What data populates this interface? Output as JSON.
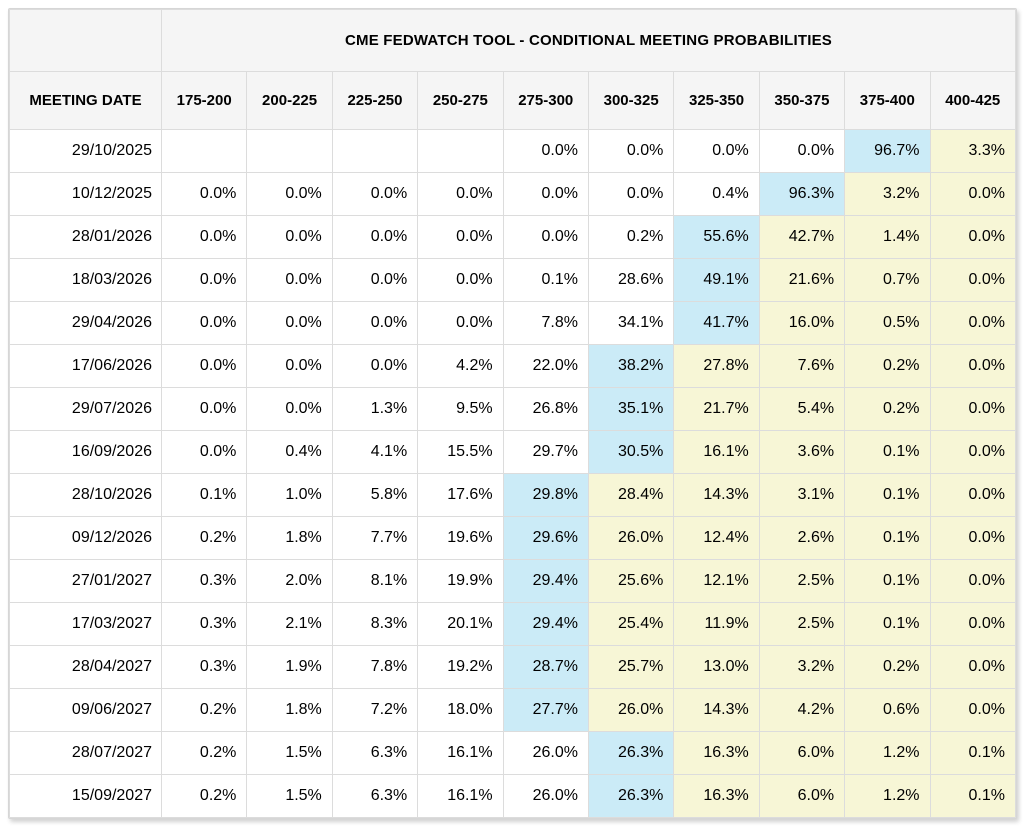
{
  "header": {
    "title": "CME FEDWATCH TOOL - CONDITIONAL MEETING PROBABILITIES",
    "row_label": "MEETING DATE",
    "bins": [
      "175-200",
      "200-225",
      "225-250",
      "250-275",
      "275-300",
      "300-325",
      "325-350",
      "350-375",
      "375-400",
      "400-425"
    ]
  },
  "rows": [
    {
      "date": "29/10/2025",
      "values": [
        "",
        "",
        "",
        "",
        "0.0%",
        "0.0%",
        "0.0%",
        "0.0%",
        "96.7%",
        "3.3%"
      ],
      "pivot": 8
    },
    {
      "date": "10/12/2025",
      "values": [
        "0.0%",
        "0.0%",
        "0.0%",
        "0.0%",
        "0.0%",
        "0.0%",
        "0.4%",
        "96.3%",
        "3.2%",
        "0.0%"
      ],
      "pivot": 7
    },
    {
      "date": "28/01/2026",
      "values": [
        "0.0%",
        "0.0%",
        "0.0%",
        "0.0%",
        "0.0%",
        "0.2%",
        "55.6%",
        "42.7%",
        "1.4%",
        "0.0%"
      ],
      "pivot": 6
    },
    {
      "date": "18/03/2026",
      "values": [
        "0.0%",
        "0.0%",
        "0.0%",
        "0.0%",
        "0.1%",
        "28.6%",
        "49.1%",
        "21.6%",
        "0.7%",
        "0.0%"
      ],
      "pivot": 6
    },
    {
      "date": "29/04/2026",
      "values": [
        "0.0%",
        "0.0%",
        "0.0%",
        "0.0%",
        "7.8%",
        "34.1%",
        "41.7%",
        "16.0%",
        "0.5%",
        "0.0%"
      ],
      "pivot": 6
    },
    {
      "date": "17/06/2026",
      "values": [
        "0.0%",
        "0.0%",
        "0.0%",
        "4.2%",
        "22.0%",
        "38.2%",
        "27.8%",
        "7.6%",
        "0.2%",
        "0.0%"
      ],
      "pivot": 5
    },
    {
      "date": "29/07/2026",
      "values": [
        "0.0%",
        "0.0%",
        "1.3%",
        "9.5%",
        "26.8%",
        "35.1%",
        "21.7%",
        "5.4%",
        "0.2%",
        "0.0%"
      ],
      "pivot": 5
    },
    {
      "date": "16/09/2026",
      "values": [
        "0.0%",
        "0.4%",
        "4.1%",
        "15.5%",
        "29.7%",
        "30.5%",
        "16.1%",
        "3.6%",
        "0.1%",
        "0.0%"
      ],
      "pivot": 5
    },
    {
      "date": "28/10/2026",
      "values": [
        "0.1%",
        "1.0%",
        "5.8%",
        "17.6%",
        "29.8%",
        "28.4%",
        "14.3%",
        "3.1%",
        "0.1%",
        "0.0%"
      ],
      "pivot": 4
    },
    {
      "date": "09/12/2026",
      "values": [
        "0.2%",
        "1.8%",
        "7.7%",
        "19.6%",
        "29.6%",
        "26.0%",
        "12.4%",
        "2.6%",
        "0.1%",
        "0.0%"
      ],
      "pivot": 4
    },
    {
      "date": "27/01/2027",
      "values": [
        "0.3%",
        "2.0%",
        "8.1%",
        "19.9%",
        "29.4%",
        "25.6%",
        "12.1%",
        "2.5%",
        "0.1%",
        "0.0%"
      ],
      "pivot": 4
    },
    {
      "date": "17/03/2027",
      "values": [
        "0.3%",
        "2.1%",
        "8.3%",
        "20.1%",
        "29.4%",
        "25.4%",
        "11.9%",
        "2.5%",
        "0.1%",
        "0.0%"
      ],
      "pivot": 4
    },
    {
      "date": "28/04/2027",
      "values": [
        "0.3%",
        "1.9%",
        "7.8%",
        "19.2%",
        "28.7%",
        "25.7%",
        "13.0%",
        "3.2%",
        "0.2%",
        "0.0%"
      ],
      "pivot": 4
    },
    {
      "date": "09/06/2027",
      "values": [
        "0.2%",
        "1.8%",
        "7.2%",
        "18.0%",
        "27.7%",
        "26.0%",
        "14.3%",
        "4.2%",
        "0.6%",
        "0.0%"
      ],
      "pivot": 4
    },
    {
      "date": "28/07/2027",
      "values": [
        "0.2%",
        "1.5%",
        "6.3%",
        "16.1%",
        "26.0%",
        "26.3%",
        "16.3%",
        "6.0%",
        "1.2%",
        "0.1%"
      ],
      "pivot": 5
    },
    {
      "date": "15/09/2027",
      "values": [
        "0.2%",
        "1.5%",
        "6.3%",
        "16.1%",
        "26.0%",
        "26.3%",
        "16.3%",
        "6.0%",
        "1.2%",
        "0.1%"
      ],
      "pivot": 5
    }
  ],
  "colors": {
    "header_bg": "#f5f5f5",
    "pivot_bg": "#cbebf7",
    "above_bg": "#f7f6d6",
    "border": "#dcdcdc"
  }
}
